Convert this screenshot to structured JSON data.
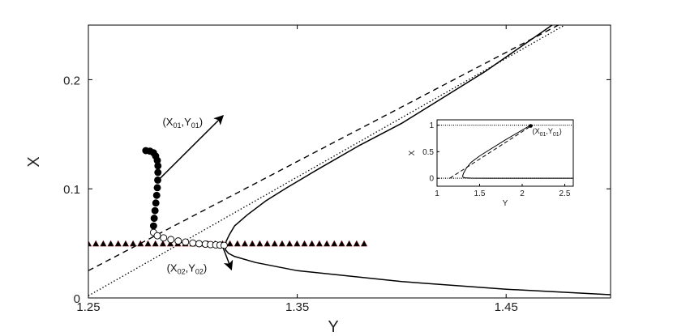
{
  "chart_data": [
    {
      "type": "line",
      "xlabel": "Y",
      "ylabel": "X",
      "xlim": [
        1.25,
        1.5
      ],
      "ylim": [
        0,
        0.25
      ],
      "xticks": [
        "1.25",
        "1.35",
        "1.45"
      ],
      "yticks": [
        "0",
        "0.1",
        "0.2"
      ],
      "series": [
        {
          "style": "dashed",
          "x": [
            1.25,
            1.475
          ],
          "y": [
            0.025,
            0.25
          ]
        },
        {
          "style": "dotted",
          "x": [
            1.25,
            1.478
          ],
          "y": [
            0.002,
            0.25
          ]
        },
        {
          "style": "solid",
          "x": [
            1.472,
            1.44,
            1.4,
            1.38,
            1.36,
            1.345,
            1.335,
            1.326,
            1.32,
            1.3175,
            1.316,
            1.3155,
            1.3157,
            1.317,
            1.32,
            1.33,
            1.35,
            1.4,
            1.45,
            1.5
          ],
          "y": [
            0.25,
            0.2075,
            0.16,
            0.14,
            0.118,
            0.101,
            0.089,
            0.076,
            0.066,
            0.058,
            0.052,
            0.048,
            0.044,
            0.041,
            0.038,
            0.0325,
            0.025,
            0.015,
            0.008,
            0.003
          ]
        },
        {
          "style": "filled-circles",
          "x": [
            1.2775,
            1.2795,
            1.2812,
            1.2822,
            1.283,
            1.2833,
            1.2833,
            1.2832,
            1.283,
            1.2827,
            1.2823,
            1.2819,
            1.2815,
            1.2812
          ],
          "y": [
            0.135,
            0.1345,
            0.133,
            0.13,
            0.126,
            0.121,
            0.115,
            0.108,
            0.101,
            0.094,
            0.087,
            0.08,
            0.073,
            0.066
          ]
        },
        {
          "style": "open-circles",
          "x": [
            1.2812,
            1.283,
            1.286,
            1.2895,
            1.293,
            1.2965,
            1.3,
            1.303,
            1.306,
            1.3085,
            1.311,
            1.313,
            1.315
          ],
          "y": [
            0.06,
            0.057,
            0.055,
            0.0535,
            0.0522,
            0.0512,
            0.0503,
            0.0497,
            0.0493,
            0.0489,
            0.0486,
            0.0484,
            0.0482
          ]
        },
        {
          "style": "triangles",
          "x_start": 1.25,
          "x_end": 1.382,
          "count": 38,
          "y": 0.05
        }
      ],
      "annotations": [
        {
          "base": "(X",
          "sub1": "01",
          "mid": ",Y",
          "sub2": "01",
          "end": ")",
          "x": 1.2855,
          "y": 0.158
        },
        {
          "base": "(X",
          "sub1": "02",
          "mid": ",Y",
          "sub2": "02",
          "end": ")",
          "x": 1.2875,
          "y": 0.024
        }
      ],
      "arrows": [
        {
          "from": [
            1.2835,
            0.108
          ],
          "to": [
            1.3145,
            0.167
          ]
        },
        {
          "from": [
            1.3145,
            0.046
          ],
          "to": [
            1.3185,
            0.026
          ]
        }
      ]
    },
    {
      "type": "line",
      "xlabel": "Y",
      "ylabel": "X",
      "xlim": [
        1,
        2.6
      ],
      "ylim": [
        -0.15,
        1.1
      ],
      "xticks": [
        "1",
        "1.5",
        "2",
        "2.5"
      ],
      "yticks": [
        "0",
        "0.5",
        "1"
      ],
      "series": [
        {
          "style": "dotted",
          "x": [
            1,
            2.6
          ],
          "y": [
            1,
            1
          ]
        },
        {
          "style": "dotted",
          "x": [
            1,
            2.6
          ],
          "y": [
            0,
            0
          ]
        },
        {
          "style": "dashed",
          "x": [
            1.15,
            2.12
          ],
          "y": [
            0,
            1.0
          ]
        },
        {
          "style": "solid",
          "x": [
            2.1,
            1.8,
            1.5,
            1.4,
            1.34,
            1.31,
            1.3,
            1.305,
            1.33,
            1.4,
            1.6,
            2.0,
            2.6
          ],
          "y": [
            1.0,
            0.72,
            0.42,
            0.3,
            0.18,
            0.09,
            0.04,
            0.02,
            0.008,
            0.003,
            0.001,
            0.0,
            0.0
          ]
        }
      ],
      "annotations": [
        {
          "base": "(X",
          "sub1": "01",
          "mid": ",Y",
          "sub2": "01",
          "end": ")",
          "x": 2.12,
          "y": 0.84
        }
      ],
      "point": {
        "x": 2.1,
        "y": 0.985
      }
    }
  ]
}
